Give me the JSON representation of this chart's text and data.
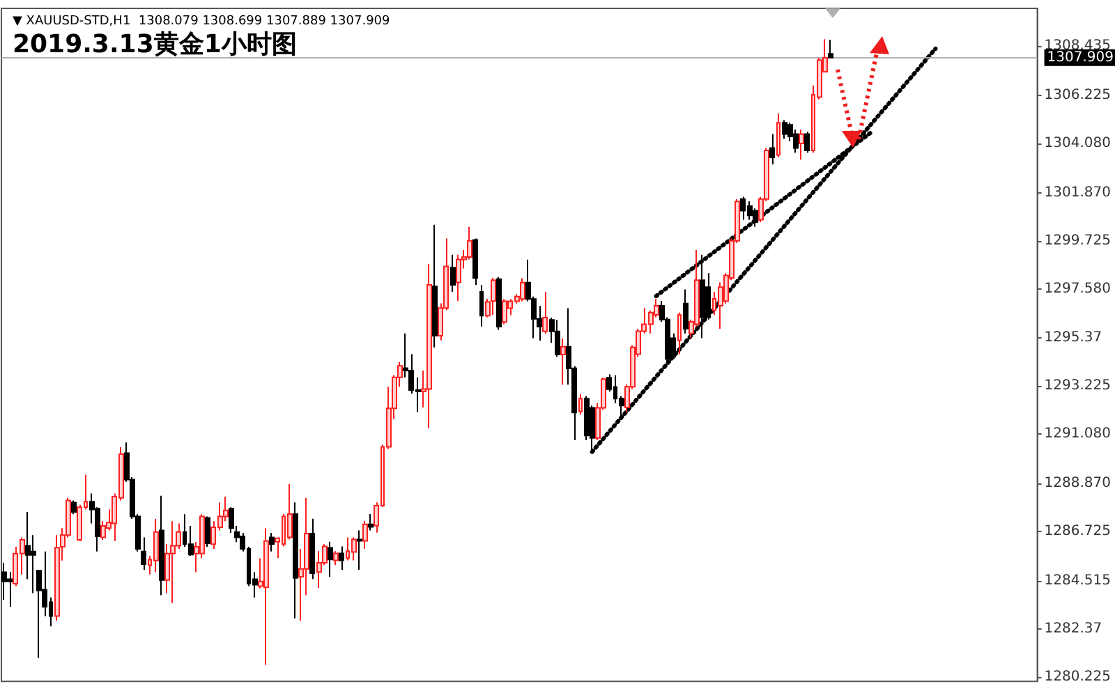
{
  "chart_data": {
    "type": "candlestick",
    "title": "2019.3.13黄金1小时图",
    "subtitle": "▼ XAUUSD-STD,H1  1308.079 1308.699 1307.889 1307.909",
    "tick_labels": "y",
    "categories": [
      null,
      null,
      null,
      null,
      null,
      null,
      null,
      null,
      null,
      null,
      null,
      null,
      null,
      null,
      null,
      null,
      null,
      null,
      null,
      null,
      null,
      null,
      null,
      null,
      null,
      null,
      null,
      null,
      null,
      null,
      null,
      null,
      null,
      null,
      null,
      null,
      null,
      null,
      null,
      null,
      null,
      null,
      null,
      null,
      null,
      null,
      null,
      null,
      null,
      null,
      null,
      null,
      null,
      null,
      null,
      null,
      null,
      null,
      null,
      null,
      null,
      null,
      null,
      null,
      null,
      null,
      null,
      null,
      null,
      null,
      null,
      null,
      null,
      null,
      null,
      null,
      null,
      null,
      null,
      null,
      null,
      null,
      null,
      null,
      null,
      null,
      null,
      null,
      null,
      null,
      null,
      null,
      null,
      null,
      null,
      null,
      null,
      null,
      null,
      null,
      null,
      null,
      null,
      null,
      null,
      null,
      null,
      null,
      null,
      null,
      null,
      null,
      null,
      null,
      null,
      null,
      null,
      null,
      null,
      null,
      null,
      null,
      null,
      null,
      null,
      null,
      null,
      null,
      null,
      null,
      null,
      null,
      null,
      null,
      null,
      null,
      null,
      null,
      null,
      null,
      null,
      null,
      null,
      null,
      null,
      null,
      null,
      null,
      null,
      null,
      null,
      null,
      null,
      null,
      null,
      null,
      null,
      null,
      null,
      null,
      null,
      null,
      null,
      null,
      null,
      null,
      null,
      null,
      null,
      null,
      null,
      null,
      null,
      null,
      null,
      null,
      null,
      null
    ],
    "ohlc": [
      [
        1284.91,
        1285.33,
        1283.67,
        1284.5
      ],
      [
        1284.6,
        1284.91,
        1283.36,
        1284.5
      ],
      [
        1284.4,
        1286.05,
        1284.29,
        1285.74
      ],
      [
        1285.74,
        1286.47,
        1284.81,
        1286.36
      ],
      [
        1286.09,
        1287.6,
        1284.6,
        1285.68
      ],
      [
        1285.84,
        1286.57,
        1283.98,
        1285.68
      ],
      [
        1284.98,
        1285.02,
        1281.08,
        1284.09
      ],
      [
        1284.13,
        1285.84,
        1282.95,
        1283.36
      ],
      [
        1283.57,
        1283.78,
        1282.49,
        1282.95
      ],
      [
        1282.95,
        1286.57,
        1282.74,
        1286.01
      ],
      [
        1286.05,
        1286.88,
        1285.43,
        1286.57
      ],
      [
        1286.57,
        1288.23,
        1286.47,
        1288.12
      ],
      [
        1288.02,
        1288.12,
        1287.5,
        1287.6
      ],
      [
        1286.36,
        1287.92,
        1286.3,
        1287.81
      ],
      [
        1287.81,
        1289.26,
        1287.71,
        1288.06
      ],
      [
        1288.06,
        1288.43,
        1287.09,
        1287.71
      ],
      [
        1287.75,
        1287.81,
        1285.84,
        1286.51
      ],
      [
        1286.47,
        1287.19,
        1286.36,
        1286.98
      ],
      [
        1286.88,
        1287.71,
        1286.78,
        1287.13
      ],
      [
        1287.09,
        1288.43,
        1286.3,
        1288.29
      ],
      [
        1288.23,
        1290.5,
        1288.12,
        1290.19
      ],
      [
        1290.23,
        1290.71,
        1288.95,
        1289.05
      ],
      [
        1289.05,
        1289.16,
        1287.29,
        1287.4
      ],
      [
        1287.4,
        1287.5,
        1285.84,
        1285.95
      ],
      [
        1285.84,
        1286.47,
        1285.02,
        1285.27
      ],
      [
        1285.22,
        1285.64,
        1284.81,
        1285.47
      ],
      [
        1285.43,
        1287.29,
        1284.91,
        1286.71
      ],
      [
        1286.78,
        1288.33,
        1283.88,
        1284.56
      ],
      [
        1284.56,
        1286.16,
        1283.98,
        1285.74
      ],
      [
        1285.74,
        1287.19,
        1283.53,
        1286.09
      ],
      [
        1286.09,
        1287.09,
        1285.95,
        1286.71
      ],
      [
        1286.71,
        1287.5,
        1286.05,
        1286.16
      ],
      [
        1286.16,
        1286.98,
        1285.64,
        1285.7
      ],
      [
        1285.74,
        1286.26,
        1284.91,
        1286.05
      ],
      [
        1285.74,
        1287.5,
        1285.53,
        1287.4
      ],
      [
        1287.34,
        1287.4,
        1286.05,
        1286.2
      ],
      [
        1286.16,
        1287.19,
        1285.95,
        1286.92
      ],
      [
        1286.92,
        1288.02,
        1286.78,
        1287.4
      ],
      [
        1287.4,
        1288.29,
        1287.19,
        1287.67
      ],
      [
        1287.75,
        1287.81,
        1286.67,
        1286.88
      ],
      [
        1286.71,
        1286.98,
        1286.26,
        1286.47
      ],
      [
        1286.51,
        1286.67,
        1285.84,
        1285.95
      ],
      [
        1285.95,
        1286.05,
        1284.29,
        1284.4
      ],
      [
        1284.6,
        1284.91,
        1283.78,
        1284.35
      ],
      [
        1284.29,
        1285.53,
        1284.19,
        1284.5
      ],
      [
        1284.23,
        1286.88,
        1280.77,
        1286.3
      ],
      [
        1286.47,
        1286.67,
        1285.84,
        1286.16
      ],
      [
        1286.27,
        1286.47,
        1285.54,
        1286.43
      ],
      [
        1286.16,
        1287.51,
        1286.06,
        1287.4
      ],
      [
        1286.47,
        1288.85,
        1286.37,
        1287.51
      ],
      [
        1287.51,
        1288.03,
        1282.85,
        1284.65
      ],
      [
        1284.71,
        1285.95,
        1282.75,
        1285.06
      ],
      [
        1285.06,
        1288.23,
        1283.88,
        1286.64
      ],
      [
        1286.64,
        1287.3,
        1284.61,
        1284.86
      ],
      [
        1284.92,
        1285.85,
        1284.2,
        1285.33
      ],
      [
        1285.33,
        1286.16,
        1285.23,
        1286.06
      ],
      [
        1286.0,
        1286.27,
        1284.71,
        1285.48
      ],
      [
        1285.44,
        1285.85,
        1285.23,
        1285.75
      ],
      [
        1285.75,
        1286.06,
        1285.02,
        1285.44
      ],
      [
        1285.54,
        1286.47,
        1285.44,
        1285.85
      ],
      [
        1285.81,
        1286.47,
        1285.44,
        1286.37
      ],
      [
        1286.37,
        1286.78,
        1285.02,
        1286.31
      ],
      [
        1286.31,
        1287.2,
        1285.96,
        1287.05
      ],
      [
        1287.05,
        1287.51,
        1286.78,
        1286.93
      ],
      [
        1286.99,
        1288.03,
        1286.68,
        1287.88
      ],
      [
        1287.88,
        1290.61,
        1287.82,
        1290.51
      ],
      [
        1290.51,
        1293.2,
        1290.41,
        1292.23
      ],
      [
        1292.23,
        1293.72,
        1291.75,
        1293.62
      ],
      [
        1293.62,
        1294.3,
        1293.2,
        1294.13
      ],
      [
        1294.03,
        1295.58,
        1293.62,
        1293.92
      ],
      [
        1293.92,
        1294.65,
        1292.89,
        1293.05
      ],
      [
        1293.05,
        1293.62,
        1292.06,
        1292.99
      ],
      [
        1292.99,
        1293.92,
        1292.27,
        1293.1
      ],
      [
        1293.1,
        1298.69,
        1291.34,
        1297.75
      ],
      [
        1297.69,
        1300.44,
        1294.96,
        1295.48
      ],
      [
        1295.48,
        1296.93,
        1295.27,
        1296.72
      ],
      [
        1296.72,
        1299.82,
        1296.62,
        1298.58
      ],
      [
        1298.52,
        1299.1,
        1297.44,
        1297.75
      ],
      [
        1297.86,
        1299.1,
        1297.03,
        1298.89
      ],
      [
        1298.89,
        1299.31,
        1298.48,
        1299.0
      ],
      [
        1299.0,
        1300.34,
        1298.89,
        1299.72
      ],
      [
        1299.76,
        1299.82,
        1297.75,
        1298.06
      ],
      [
        1297.44,
        1297.75,
        1295.89,
        1296.37
      ],
      [
        1296.37,
        1297.13,
        1296.3,
        1296.99
      ],
      [
        1297.03,
        1298.06,
        1296.41,
        1297.96
      ],
      [
        1298.01,
        1298.1,
        1295.74,
        1295.88
      ],
      [
        1296.09,
        1297.12,
        1295.99,
        1297.02
      ],
      [
        1296.71,
        1297.12,
        1296.4,
        1297.02
      ],
      [
        1297.02,
        1297.33,
        1296.92,
        1297.23
      ],
      [
        1297.12,
        1298.05,
        1297.02,
        1297.85
      ],
      [
        1297.85,
        1298.88,
        1297.02,
        1297.12
      ],
      [
        1297.12,
        1297.23,
        1295.36,
        1296.23
      ],
      [
        1296.23,
        1296.81,
        1295.26,
        1295.88
      ],
      [
        1295.67,
        1297.43,
        1295.57,
        1296.29
      ],
      [
        1296.19,
        1296.29,
        1295.16,
        1295.67
      ],
      [
        1295.67,
        1296.19,
        1294.54,
        1294.64
      ],
      [
        1294.64,
        1295.36,
        1293.29,
        1294.99
      ],
      [
        1294.99,
        1296.71,
        1293.29,
        1294.02
      ],
      [
        1294.02,
        1294.12,
        1290.81,
        1292.05
      ],
      [
        1292.09,
        1292.88,
        1291.95,
        1292.67
      ],
      [
        1292.67,
        1292.78,
        1290.81,
        1291.02
      ],
      [
        1292.26,
        1292.36,
        1290.29,
        1290.91
      ],
      [
        1290.91,
        1292.47,
        1290.81,
        1292.26
      ],
      [
        1292.26,
        1293.6,
        1292.16,
        1293.54
      ],
      [
        1293.6,
        1293.75,
        1292.98,
        1293.09
      ],
      [
        1293.19,
        1293.71,
        1292.47,
        1292.67
      ],
      [
        1292.67,
        1292.78,
        1291.74,
        1292.36
      ],
      [
        1292.27,
        1293.3,
        1292.06,
        1293.2
      ],
      [
        1293.2,
        1295.06,
        1293.09,
        1294.96
      ],
      [
        1294.65,
        1295.79,
        1294.54,
        1295.68
      ],
      [
        1295.68,
        1296.72,
        1295.58,
        1295.99
      ],
      [
        1295.99,
        1296.61,
        1295.58,
        1296.51
      ],
      [
        1296.41,
        1297.13,
        1296.3,
        1296.82
      ],
      [
        1296.82,
        1297.03,
        1296.1,
        1296.2
      ],
      [
        1296.2,
        1296.3,
        1294.23,
        1294.44
      ],
      [
        1295.37,
        1295.58,
        1294.44,
        1294.54
      ],
      [
        1295.27,
        1296.51,
        1294.65,
        1296.41
      ],
      [
        1296.92,
        1297.55,
        1295.58,
        1295.79
      ],
      [
        1295.58,
        1296.2,
        1295.37,
        1296.1
      ],
      [
        1295.99,
        1299.31,
        1295.89,
        1297.96
      ],
      [
        1297.96,
        1299.1,
        1295.37,
        1296.3
      ],
      [
        1297.65,
        1298.27,
        1296.2,
        1296.3
      ],
      [
        1296.61,
        1297.44,
        1296.41,
        1297.13
      ],
      [
        1296.82,
        1297.86,
        1295.79,
        1297.65
      ],
      [
        1297.03,
        1298.27,
        1296.92,
        1298.17
      ],
      [
        1298.06,
        1299.82,
        1297.96,
        1299.72
      ],
      [
        1299.72,
        1301.58,
        1299.62,
        1301.48
      ],
      [
        1301.59,
        1301.69,
        1300.66,
        1301.07
      ],
      [
        1301.28,
        1301.49,
        1300.66,
        1300.86
      ],
      [
        1301.07,
        1301.17,
        1300.35,
        1300.55
      ],
      [
        1300.66,
        1301.69,
        1300.55,
        1301.59
      ],
      [
        1301.59,
        1303.87,
        1301.49,
        1303.76
      ],
      [
        1303.87,
        1304.49,
        1303.14,
        1303.45
      ],
      [
        1303.56,
        1305.42,
        1303.45,
        1305.0
      ],
      [
        1305.0,
        1305.11,
        1304.28,
        1304.49
      ],
      [
        1304.9,
        1305.0,
        1304.18,
        1304.38
      ],
      [
        1304.49,
        1304.69,
        1303.66,
        1303.87
      ],
      [
        1304.07,
        1304.69,
        1303.35,
        1304.49
      ],
      [
        1304.49,
        1304.59,
        1303.66,
        1303.76
      ],
      [
        1303.76,
        1306.66,
        1303.66,
        1306.25
      ],
      [
        1306.14,
        1307.9,
        1306.04,
        1307.8
      ],
      [
        1307.28,
        1308.73,
        1307.28,
        1307.9
      ],
      [
        1308.079,
        1308.699,
        1307.889,
        1307.909
      ],
      null,
      null,
      null,
      null,
      null,
      null,
      null,
      null,
      null,
      null,
      null,
      null,
      null,
      null,
      null,
      null,
      null,
      null,
      null,
      null,
      null,
      null,
      null,
      null,
      null,
      null,
      null,
      null,
      null,
      null,
      null,
      null,
      null,
      null,
      null
    ],
    "series": [
      {
        "type": "line",
        "color": "#000000",
        "line_style": "dotted",
        "values": [
          null,
          null,
          null,
          null,
          null,
          null,
          null,
          null,
          null,
          null,
          null,
          null,
          null,
          null,
          null,
          null,
          null,
          null,
          null,
          null,
          null,
          null,
          null,
          null,
          null,
          null,
          null,
          null,
          null,
          null,
          null,
          null,
          null,
          null,
          null,
          null,
          null,
          null,
          null,
          null,
          null,
          null,
          null,
          null,
          null,
          null,
          null,
          null,
          null,
          null,
          null,
          null,
          null,
          null,
          null,
          null,
          null,
          null,
          null,
          null,
          null,
          null,
          null,
          null,
          null,
          null,
          null,
          null,
          null,
          null,
          null,
          null,
          null,
          null,
          null,
          null,
          null,
          null,
          null,
          null,
          null,
          null,
          null,
          null,
          null,
          null,
          null,
          null,
          null,
          null,
          null,
          null,
          null,
          null,
          null,
          null,
          null,
          null,
          null,
          null,
          null,
          1290.29,
          null,
          null,
          null,
          null,
          null,
          null,
          null,
          null,
          null,
          null,
          null,
          null,
          null,
          null,
          null,
          null,
          null,
          null,
          null,
          null,
          null,
          null,
          null,
          null,
          null,
          null,
          null,
          null,
          null,
          null,
          null,
          null,
          null,
          null,
          null,
          null,
          null,
          null,
          null,
          null,
          null,
          null,
          null,
          null,
          null,
          null,
          null,
          null,
          null,
          null,
          null,
          null,
          null,
          null,
          null,
          null,
          null,
          null,
          1308.31,
          null,
          null,
          null,
          null,
          null,
          null,
          null,
          null,
          null,
          null,
          null,
          null,
          null,
          null,
          null,
          null,
          null
        ]
      },
      {
        "type": "line",
        "color": "#000000",
        "line_style": "dotted",
        "values": [
          null,
          null,
          null,
          null,
          null,
          null,
          null,
          null,
          null,
          null,
          null,
          null,
          null,
          null,
          null,
          null,
          null,
          null,
          null,
          null,
          null,
          null,
          null,
          null,
          null,
          null,
          null,
          null,
          null,
          null,
          null,
          null,
          null,
          null,
          null,
          null,
          null,
          null,
          null,
          null,
          null,
          null,
          null,
          null,
          null,
          null,
          null,
          null,
          null,
          null,
          null,
          null,
          null,
          null,
          null,
          null,
          null,
          null,
          null,
          null,
          null,
          null,
          null,
          null,
          null,
          null,
          null,
          null,
          null,
          null,
          null,
          null,
          null,
          null,
          null,
          null,
          null,
          null,
          null,
          null,
          null,
          null,
          null,
          null,
          null,
          null,
          null,
          null,
          null,
          null,
          null,
          null,
          null,
          null,
          null,
          null,
          null,
          null,
          null,
          null,
          null,
          null,
          null,
          null,
          null,
          null,
          null,
          null,
          null,
          null,
          null,
          null,
          1297.25,
          null,
          null,
          null,
          null,
          null,
          null,
          null,
          null,
          null,
          null,
          null,
          null,
          null,
          null,
          null,
          null,
          null,
          null,
          null,
          null,
          null,
          null,
          null,
          null,
          null,
          null,
          null,
          null,
          null,
          null,
          null,
          null,
          null,
          null,
          null,
          null,
          1304.58,
          null,
          null,
          null,
          null,
          null,
          null,
          null,
          null,
          null,
          null,
          null,
          null,
          null,
          null,
          null,
          null,
          null,
          null,
          null,
          null,
          null,
          null,
          null,
          null,
          null,
          null,
          null,
          null
        ]
      }
    ],
    "ylim": [
      1280.03,
      1310.11
    ],
    "yticks": [
      1280.225,
      1282.37,
      1284.515,
      1286.725,
      {
        "value": 1288.87,
        "label": "1288.870"
      },
      {
        "value": 1291.08,
        "label": "1291.080"
      },
      1293.225,
      1295.37,
      {
        "value": 1297.58,
        "label": "1297.580"
      },
      1299.725,
      {
        "value": 1301.87,
        "label": "1301.870"
      },
      {
        "value": 1304.08,
        "label": "1304.080"
      },
      1306.225,
      1308.435
    ],
    "ref_lines": [
      {
        "axis": "y",
        "value": 1307.909,
        "label": "1307.909",
        "color": "#b0b0b0"
      }
    ],
    "grid": false
  }
}
